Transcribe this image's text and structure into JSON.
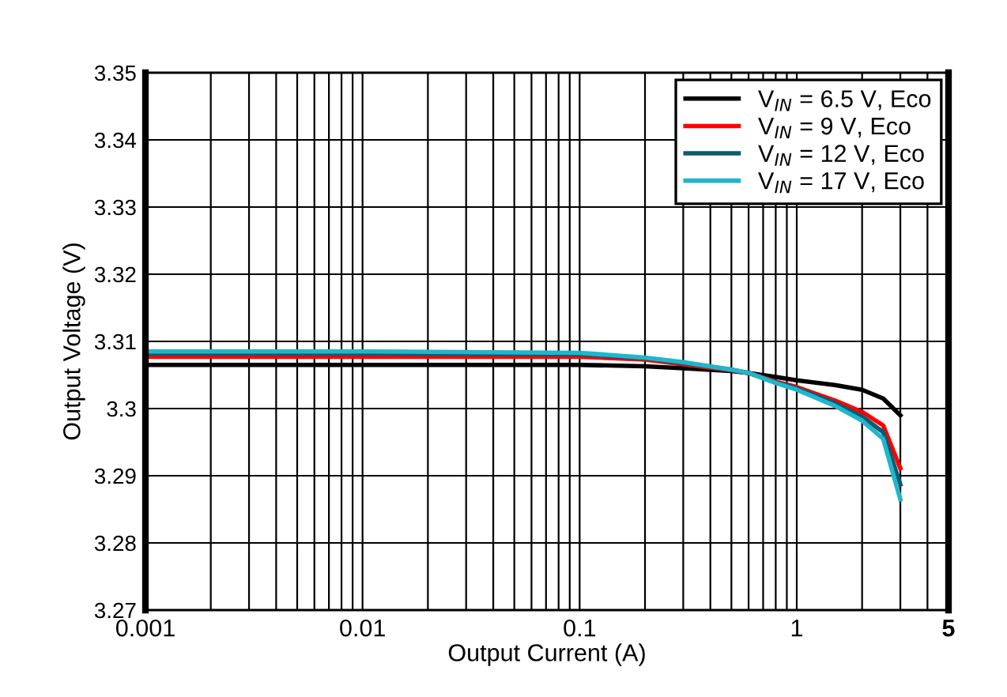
{
  "chart_data": {
    "type": "line",
    "xlabel": "Output Current (A)",
    "ylabel": "Output Voltage (V)",
    "log": "x",
    "xlim": [
      0.001,
      5
    ],
    "xticks": [
      0.001,
      0.01,
      0.1,
      1,
      5
    ],
    "ylim": [
      3.27,
      3.35
    ],
    "yticks": [
      3.27,
      3.28,
      3.29,
      3.3,
      3.31,
      3.32,
      3.33,
      3.34,
      3.35
    ],
    "grid": true,
    "legend": "top right",
    "line_style": "solid",
    "series": [
      {
        "name": "V$_{IN}$ = 6.5 V, Eco",
        "color": "#000000",
        "x": [
          0.001,
          0.01,
          0.1,
          0.2,
          0.3,
          0.5,
          0.6,
          0.8,
          1,
          1.5,
          2,
          2.5,
          3
        ],
        "values": [
          3.3065,
          3.3065,
          3.3065,
          3.3063,
          3.306,
          3.3056,
          3.3053,
          3.3047,
          3.3042,
          3.3035,
          3.3028,
          3.3015,
          3.299
        ]
      },
      {
        "name": "V$_{IN}$ = 9 V, Eco",
        "color": "#ff0000",
        "x": [
          0.001,
          0.01,
          0.1,
          0.2,
          0.3,
          0.5,
          0.6,
          0.8,
          1,
          1.5,
          2,
          2.5,
          3
        ],
        "values": [
          3.3077,
          3.3077,
          3.3077,
          3.3073,
          3.3066,
          3.3057,
          3.3053,
          3.304,
          3.3032,
          3.3012,
          3.2995,
          3.2975,
          3.2911
        ]
      },
      {
        "name": "V$_{IN}$ = 12 V, Eco",
        "color": "#0e5a6e",
        "x": [
          0.001,
          0.01,
          0.1,
          0.2,
          0.3,
          0.5,
          0.6,
          0.8,
          1,
          1.5,
          2,
          2.5,
          3
        ],
        "values": [
          3.3082,
          3.3082,
          3.3081,
          3.3075,
          3.3068,
          3.3058,
          3.3053,
          3.3039,
          3.303,
          3.3008,
          3.2988,
          3.2965,
          3.2887
        ]
      },
      {
        "name": "V$_{IN}$ = 17 V, Eco",
        "color": "#1fb6cc",
        "x": [
          0.001,
          0.01,
          0.1,
          0.2,
          0.3,
          0.5,
          0.6,
          0.8,
          1,
          1.5,
          2,
          2.5,
          3
        ],
        "values": [
          3.3085,
          3.3085,
          3.3083,
          3.3076,
          3.3069,
          3.3058,
          3.3053,
          3.3038,
          3.3028,
          3.3004,
          3.2982,
          3.2955,
          3.2865
        ]
      }
    ]
  }
}
